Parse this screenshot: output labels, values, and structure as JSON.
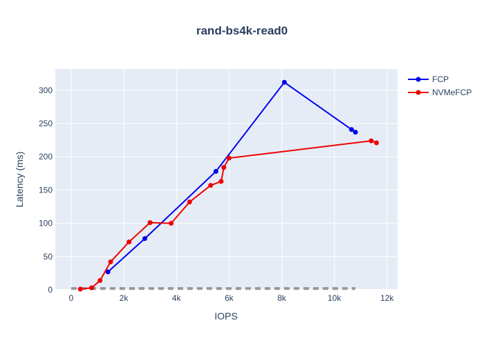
{
  "chart_data": {
    "type": "line",
    "title": "rand-bs4k-read0",
    "xlabel": "IOPS",
    "ylabel": "Latency (ms)",
    "xlim": [
      -600,
      12400
    ],
    "ylim": [
      0,
      332
    ],
    "x_ticks": [
      {
        "value": 0,
        "label": "0"
      },
      {
        "value": 2000,
        "label": "2k"
      },
      {
        "value": 4000,
        "label": "4k"
      },
      {
        "value": 6000,
        "label": "6k"
      },
      {
        "value": 8000,
        "label": "8k"
      },
      {
        "value": 10000,
        "label": "10k"
      },
      {
        "value": 12000,
        "label": "12k"
      }
    ],
    "y_ticks": [
      {
        "value": 0,
        "label": "0"
      },
      {
        "value": 50,
        "label": "50"
      },
      {
        "value": 100,
        "label": "100"
      },
      {
        "value": 150,
        "label": "150"
      },
      {
        "value": 200,
        "label": "200"
      },
      {
        "value": 250,
        "label": "250"
      },
      {
        "value": 300,
        "label": "300"
      }
    ],
    "grid": true,
    "legend_position": "top-right",
    "series": [
      {
        "name": "FCP",
        "color": "#0000ee",
        "points": [
          [
            1400,
            27
          ],
          [
            2800,
            77
          ],
          [
            5500,
            178
          ],
          [
            8100,
            312
          ],
          [
            10650,
            241
          ],
          [
            10800,
            237
          ]
        ]
      },
      {
        "name": "NVMeFCP",
        "color": "#ee0000",
        "points": [
          [
            350,
            1
          ],
          [
            780,
            3
          ],
          [
            1100,
            14
          ],
          [
            1500,
            42
          ],
          [
            2200,
            72
          ],
          [
            3000,
            101
          ],
          [
            3800,
            100
          ],
          [
            4500,
            132
          ],
          [
            5300,
            157
          ],
          [
            5700,
            163
          ],
          [
            5800,
            184
          ],
          [
            6000,
            198
          ],
          [
            11400,
            224
          ],
          [
            11600,
            221
          ]
        ]
      }
    ],
    "reference_line": {
      "color": "#888888",
      "points": [
        [
          0,
          2
        ],
        [
          10800,
          2
        ]
      ]
    }
  }
}
